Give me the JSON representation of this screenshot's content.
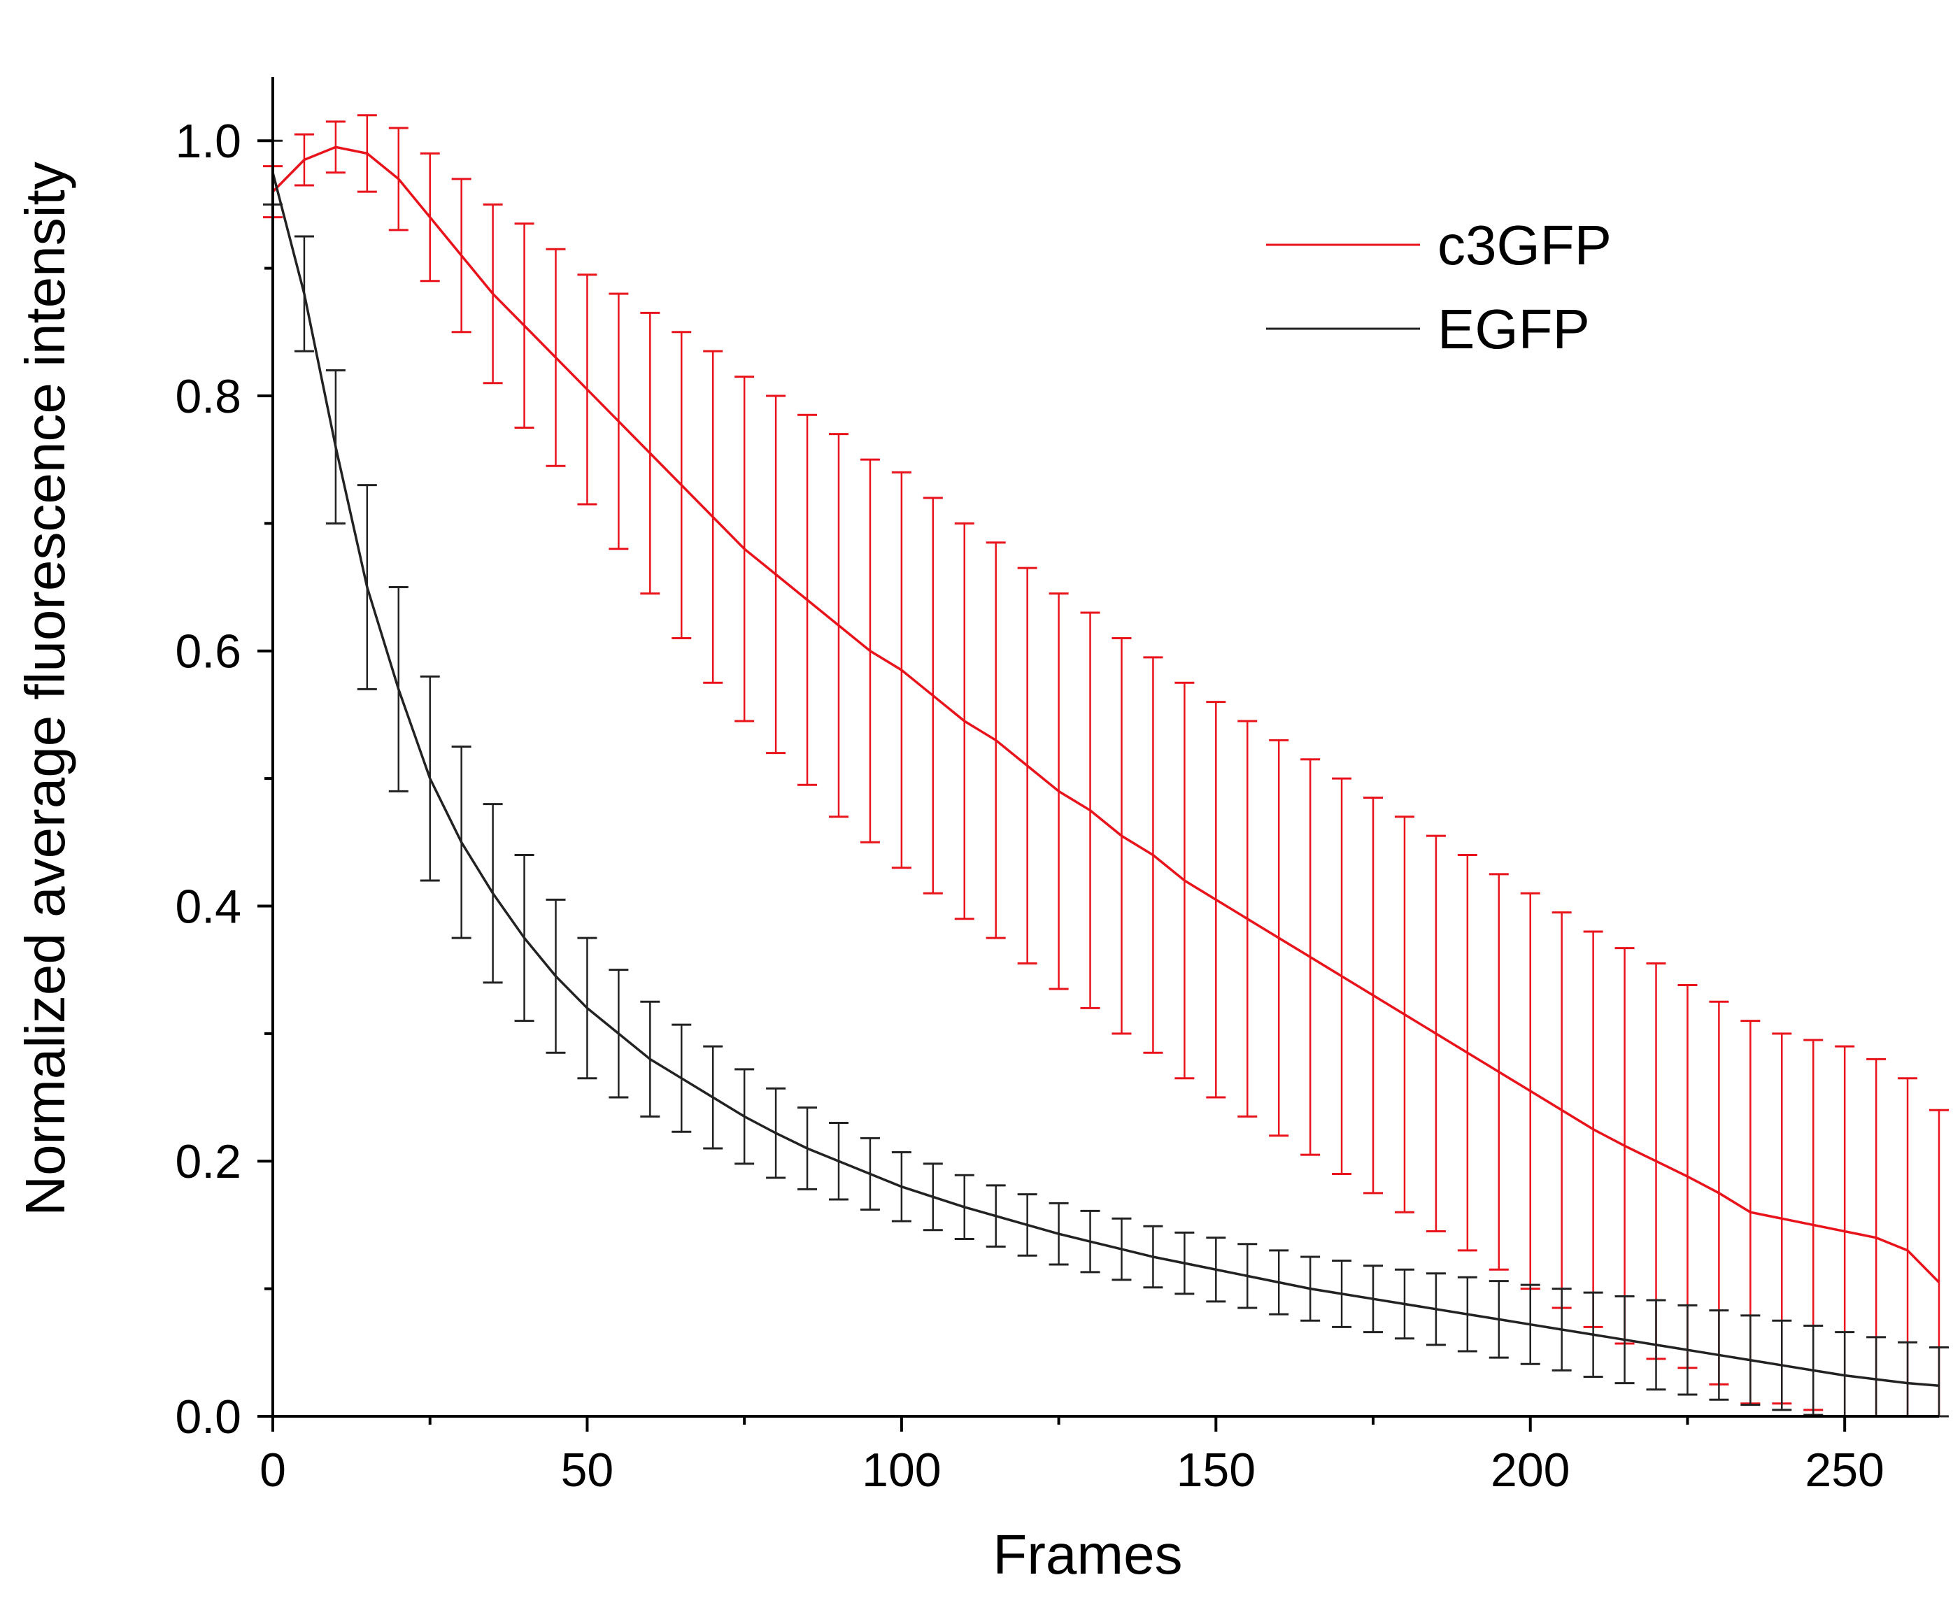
{
  "chart_data": {
    "type": "line",
    "title": "",
    "xlabel": "Frames",
    "ylabel": "Normalized average fluorescence intensity",
    "xlim": [
      0,
      265
    ],
    "ylim": [
      0,
      1.05
    ],
    "xticks": [
      0,
      50,
      100,
      150,
      200,
      250
    ],
    "xtick_labels": [
      "0",
      "50",
      "100",
      "150",
      "200",
      "250"
    ],
    "yticks": [
      0.0,
      0.2,
      0.4,
      0.6,
      0.8,
      1.0
    ],
    "ytick_labels": [
      "0.0",
      "0.2",
      "0.4",
      "0.6",
      "0.8",
      "1.0"
    ],
    "grid": false,
    "legend": {
      "position": "top-right",
      "entries": [
        "c3GFP",
        "EGFP"
      ]
    },
    "x": [
      0,
      5,
      10,
      15,
      20,
      25,
      30,
      35,
      40,
      45,
      50,
      55,
      60,
      65,
      70,
      75,
      80,
      85,
      90,
      95,
      100,
      105,
      110,
      115,
      120,
      125,
      130,
      135,
      140,
      145,
      150,
      155,
      160,
      165,
      170,
      175,
      180,
      185,
      190,
      195,
      200,
      205,
      210,
      215,
      220,
      225,
      230,
      235,
      240,
      245,
      250,
      255,
      260,
      265
    ],
    "series": [
      {
        "name": "c3GFP",
        "color": "#e8131b",
        "values": [
          0.96,
          0.985,
          0.995,
          0.99,
          0.97,
          0.94,
          0.91,
          0.88,
          0.855,
          0.83,
          0.805,
          0.78,
          0.755,
          0.73,
          0.705,
          0.68,
          0.66,
          0.64,
          0.62,
          0.6,
          0.585,
          0.565,
          0.545,
          0.53,
          0.51,
          0.49,
          0.475,
          0.455,
          0.44,
          0.42,
          0.405,
          0.39,
          0.375,
          0.36,
          0.345,
          0.33,
          0.315,
          0.3,
          0.285,
          0.27,
          0.255,
          0.24,
          0.225,
          0.212,
          0.2,
          0.188,
          0.175,
          0.16,
          0.155,
          0.15,
          0.145,
          0.14,
          0.13,
          0.105
        ],
        "error": [
          0.02,
          0.02,
          0.02,
          0.03,
          0.04,
          0.05,
          0.06,
          0.07,
          0.08,
          0.085,
          0.09,
          0.1,
          0.11,
          0.12,
          0.13,
          0.135,
          0.14,
          0.145,
          0.15,
          0.15,
          0.155,
          0.155,
          0.155,
          0.155,
          0.155,
          0.155,
          0.155,
          0.155,
          0.155,
          0.155,
          0.155,
          0.155,
          0.155,
          0.155,
          0.155,
          0.155,
          0.155,
          0.155,
          0.155,
          0.155,
          0.155,
          0.155,
          0.155,
          0.155,
          0.155,
          0.15,
          0.15,
          0.15,
          0.145,
          0.145,
          0.145,
          0.14,
          0.135,
          0.135
        ]
      },
      {
        "name": "EGFP",
        "color": "#222222",
        "values": [
          0.975,
          0.88,
          0.76,
          0.65,
          0.57,
          0.5,
          0.45,
          0.41,
          0.375,
          0.345,
          0.32,
          0.3,
          0.28,
          0.265,
          0.25,
          0.235,
          0.222,
          0.21,
          0.2,
          0.19,
          0.18,
          0.172,
          0.164,
          0.157,
          0.15,
          0.143,
          0.137,
          0.131,
          0.125,
          0.12,
          0.115,
          0.11,
          0.105,
          0.1,
          0.096,
          0.092,
          0.088,
          0.084,
          0.08,
          0.076,
          0.072,
          0.068,
          0.064,
          0.06,
          0.056,
          0.052,
          0.048,
          0.044,
          0.04,
          0.036,
          0.032,
          0.029,
          0.026,
          0.024
        ],
        "error": [
          0.025,
          0.045,
          0.06,
          0.08,
          0.08,
          0.08,
          0.075,
          0.07,
          0.065,
          0.06,
          0.055,
          0.05,
          0.045,
          0.042,
          0.04,
          0.037,
          0.035,
          0.032,
          0.03,
          0.028,
          0.027,
          0.026,
          0.025,
          0.024,
          0.024,
          0.024,
          0.024,
          0.024,
          0.024,
          0.024,
          0.025,
          0.025,
          0.025,
          0.025,
          0.026,
          0.026,
          0.027,
          0.028,
          0.029,
          0.03,
          0.031,
          0.032,
          0.033,
          0.034,
          0.035,
          0.035,
          0.035,
          0.035,
          0.035,
          0.035,
          0.034,
          0.033,
          0.032,
          0.03
        ]
      }
    ]
  }
}
